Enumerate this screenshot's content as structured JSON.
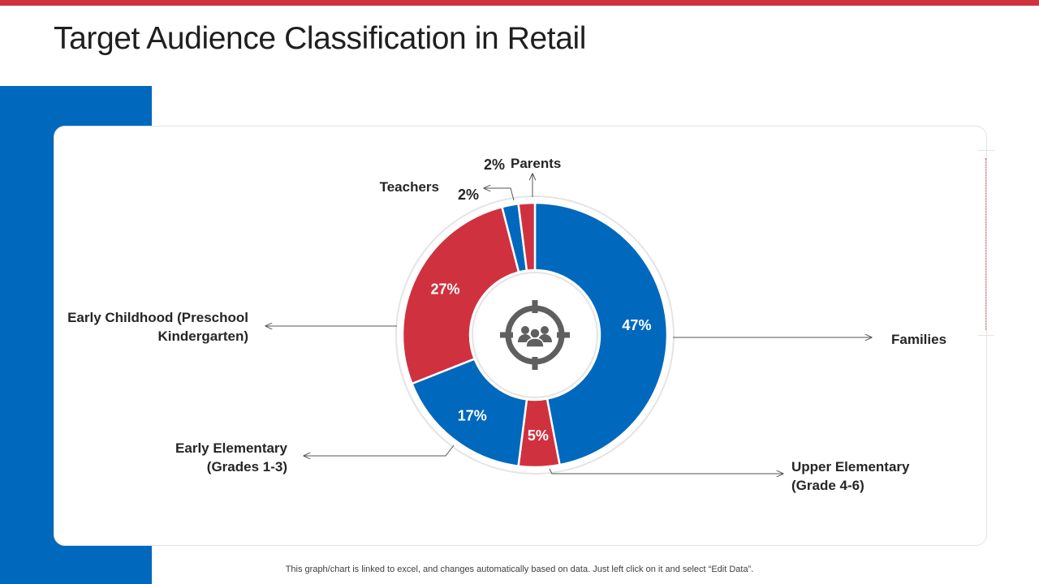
{
  "slide": {
    "title": "Target Audience Classification in Retail",
    "footnote": "This graph/chart is linked to excel,  and changes automatically based on data. Just left click on it and select “Edit Data”."
  },
  "colors": {
    "accent_red": "#d0313f",
    "accent_blue": "#0068bd",
    "icon_gray": "#5f5f5f"
  },
  "center_icon": "target-audience-icon",
  "chart_data": {
    "type": "pie",
    "variant": "donut",
    "title": "",
    "legend": "none",
    "categories": [
      "Families",
      "Upper Elementary (Grade 4-6)",
      "Early Elementary (Grades 1-3)",
      "Early Childhood (Preschool Kindergarten)",
      "Teachers",
      "Parents"
    ],
    "values": [
      47,
      5,
      17,
      27,
      2,
      2
    ],
    "value_labels": [
      "47%",
      "5%",
      "17%",
      "27%",
      "2%",
      "2%"
    ],
    "slice_colors": [
      "#0068bd",
      "#d0313f",
      "#0068bd",
      "#d0313f",
      "#0068bd",
      "#d0313f"
    ],
    "category_label_lines": [
      [
        "Families"
      ],
      [
        "Upper Elementary",
        "(Grade 4-6)"
      ],
      [
        "Early Elementary",
        "(Grades 1-3)"
      ],
      [
        "Early Childhood (Preschool",
        "Kindergarten)"
      ],
      [
        "Teachers"
      ],
      [
        "Parents"
      ]
    ]
  }
}
